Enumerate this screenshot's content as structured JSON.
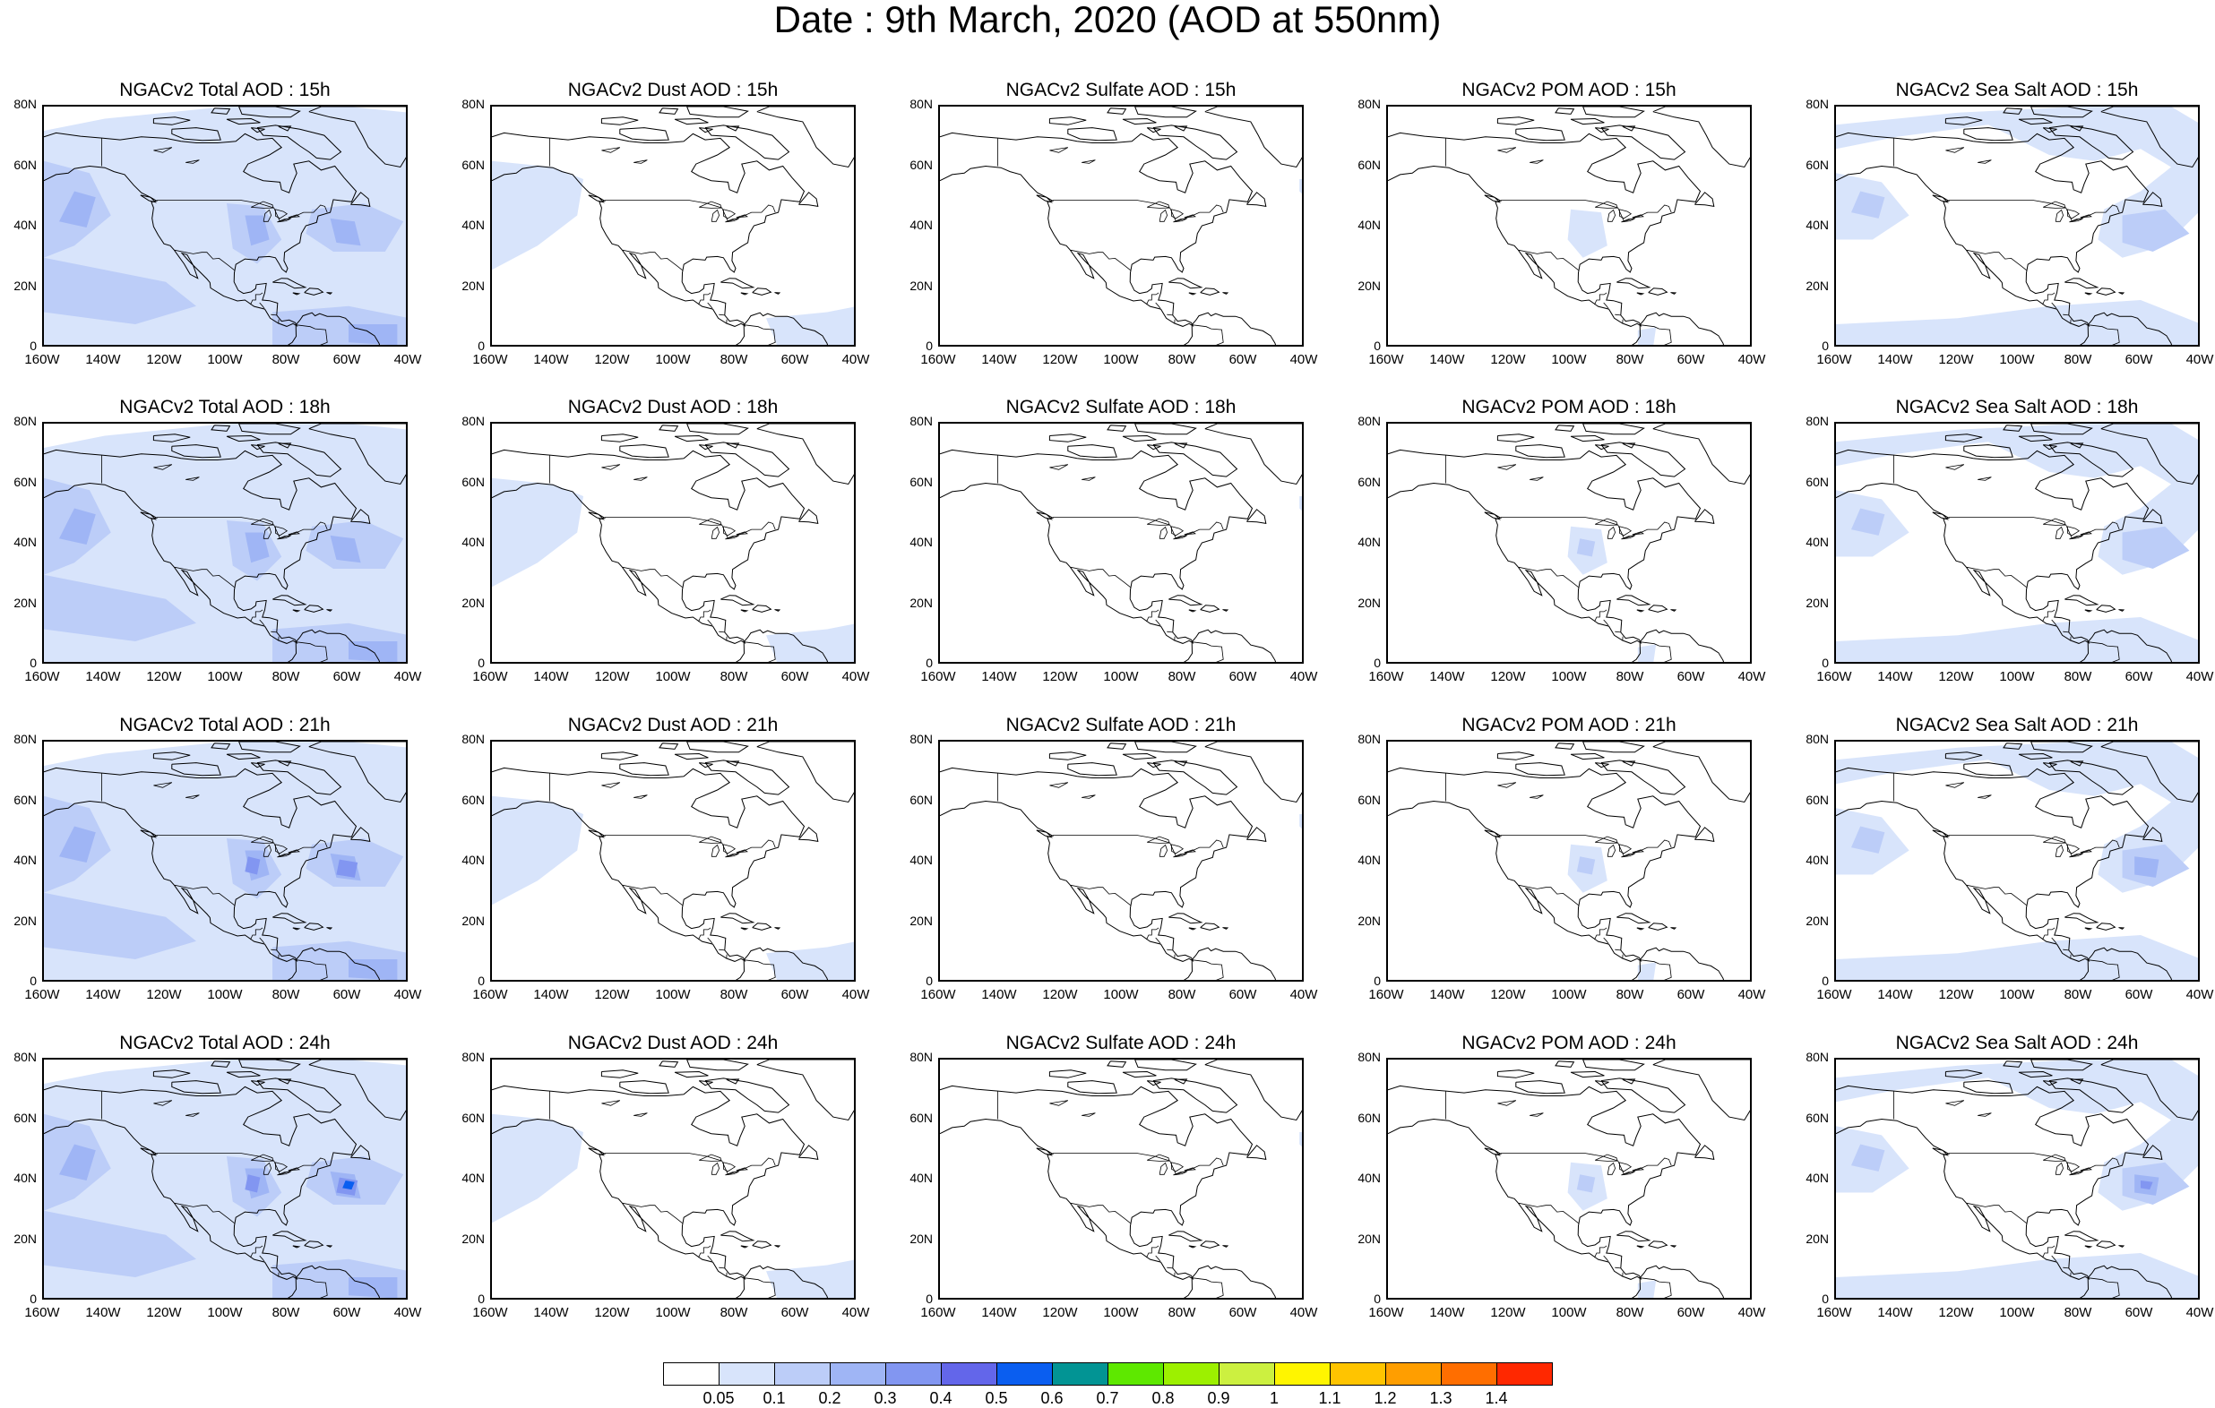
{
  "title": "Date : 9th March, 2020 (AOD at 550nm)",
  "lat_labels": [
    "80N",
    "60N",
    "40N",
    "20N",
    "0"
  ],
  "lon_labels": [
    "160W",
    "140W",
    "120W",
    "100W",
    "80W",
    "60W",
    "40W"
  ],
  "panels": [
    [
      "NGACv2 Total AOD : 15h",
      "NGACv2 Dust AOD : 15h",
      "NGACv2 Sulfate AOD : 15h",
      "NGACv2 POM AOD : 15h",
      "NGACv2 Sea Salt AOD : 15h"
    ],
    [
      "NGACv2 Total AOD : 18h",
      "NGACv2 Dust AOD : 18h",
      "NGACv2 Sulfate AOD : 18h",
      "NGACv2 POM AOD : 18h",
      "NGACv2 Sea Salt AOD : 18h"
    ],
    [
      "NGACv2 Total AOD : 21h",
      "NGACv2 Dust AOD : 21h",
      "NGACv2 Sulfate AOD : 21h",
      "NGACv2 POM AOD : 21h",
      "NGACv2 Sea Salt AOD : 21h"
    ],
    [
      "NGACv2 Total AOD : 24h",
      "NGACv2 Dust AOD : 24h",
      "NGACv2 Sulfate AOD : 24h",
      "NGACv2 POM AOD : 24h",
      "NGACv2 Sea Salt  AOD : 24h"
    ]
  ],
  "colorbar": {
    "labels": [
      "0.05",
      "0.1",
      "0.2",
      "0.3",
      "0.4",
      "0.5",
      "0.6",
      "0.7",
      "0.8",
      "0.9",
      "1",
      "1.1",
      "1.2",
      "1.3",
      "1.4"
    ],
    "colors": [
      "#ffffff",
      "#d8e4fb",
      "#bccdf8",
      "#9fb5f5",
      "#8296f1",
      "#6366ea",
      "#0a5ef0",
      "#029494",
      "#5ee800",
      "#9df000",
      "#ccf040",
      "#fff500",
      "#ffc400",
      "#ff9e00",
      "#ff6e00",
      "#ff2800"
    ]
  }
}
